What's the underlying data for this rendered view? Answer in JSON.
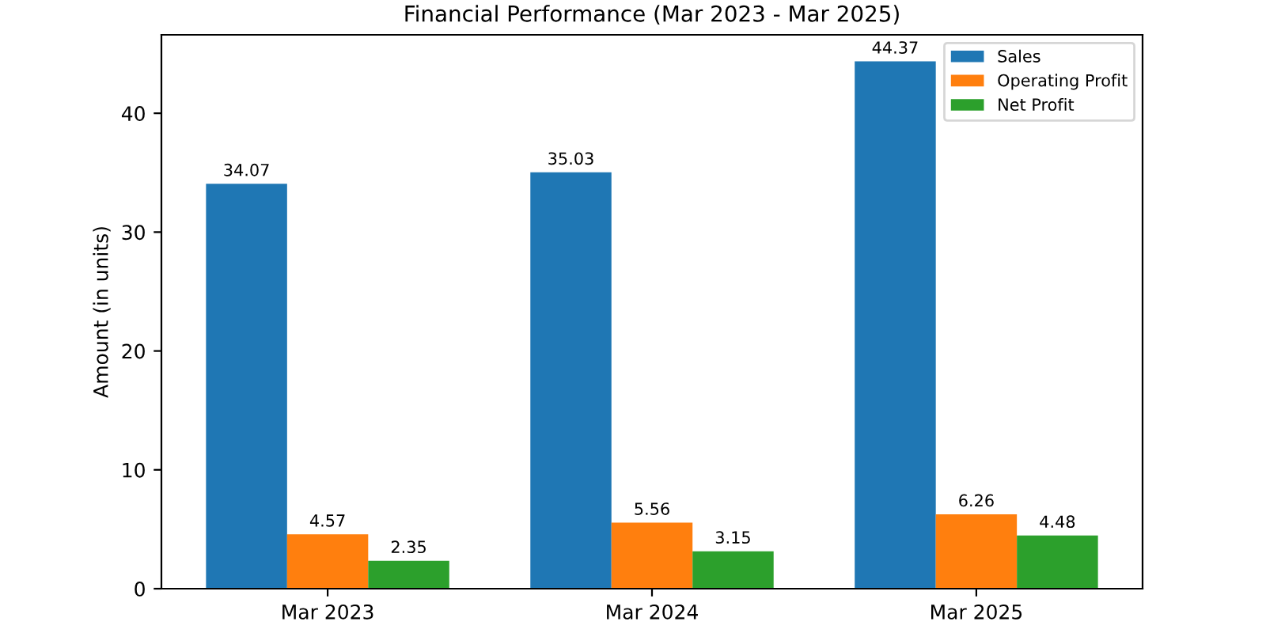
{
  "chart_data": {
    "type": "bar",
    "title": "Financial Performance (Mar 2023 - Mar 2025)",
    "ylabel": "Amount (in units)",
    "categories": [
      "Mar 2023",
      "Mar 2024",
      "Mar 2025"
    ],
    "series": [
      {
        "name": "Sales",
        "color": "#1f77b4",
        "values": [
          34.07,
          35.03,
          44.37
        ]
      },
      {
        "name": "Operating Profit",
        "color": "#ff7f0e",
        "values": [
          4.57,
          5.56,
          6.26
        ]
      },
      {
        "name": "Net Profit",
        "color": "#2ca02c",
        "values": [
          2.35,
          3.15,
          4.48
        ]
      }
    ],
    "ylim": [
      0,
      46.6
    ],
    "yticks": [
      0,
      10,
      20,
      30,
      40
    ],
    "grid": false,
    "legend": "top right",
    "data_labels": true
  }
}
